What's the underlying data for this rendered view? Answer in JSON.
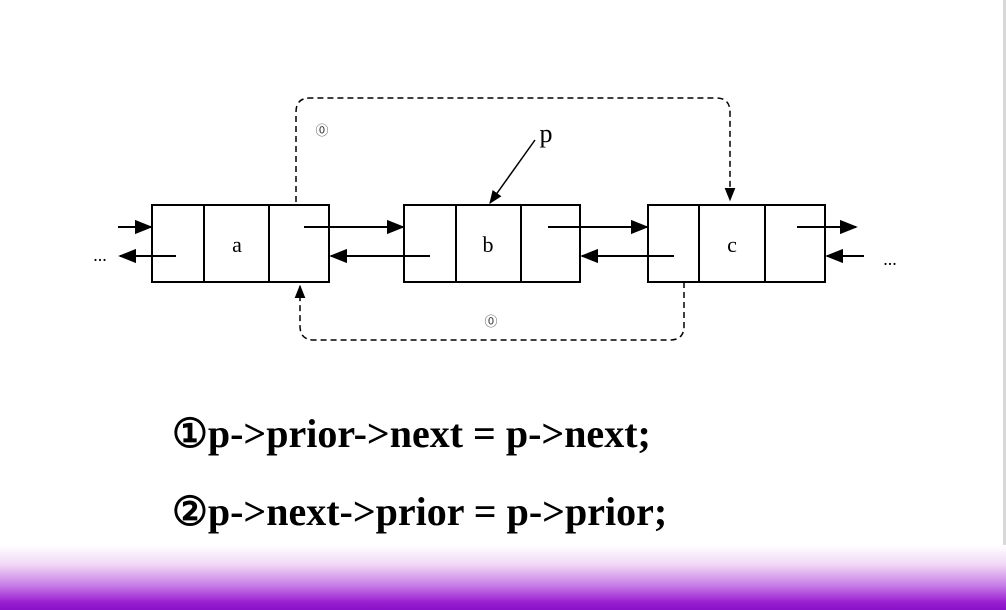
{
  "diagram": {
    "nodes": [
      {
        "id": "a",
        "label": "a"
      },
      {
        "id": "b",
        "label": "b"
      },
      {
        "id": "c",
        "label": "c"
      }
    ],
    "pointer_label": "p",
    "ellipsis_left": "...",
    "ellipsis_right": "...",
    "step_marker_top": "⓪",
    "step_marker_bottom": "⓪"
  },
  "code": {
    "line1": "①p->prior->next = p->next;",
    "line2": "②p->next->prior = p->prior;"
  },
  "colors": {
    "bar_top": "#f1d8f6",
    "bar_bottom": "#8a10c9",
    "ink": "#000000"
  }
}
